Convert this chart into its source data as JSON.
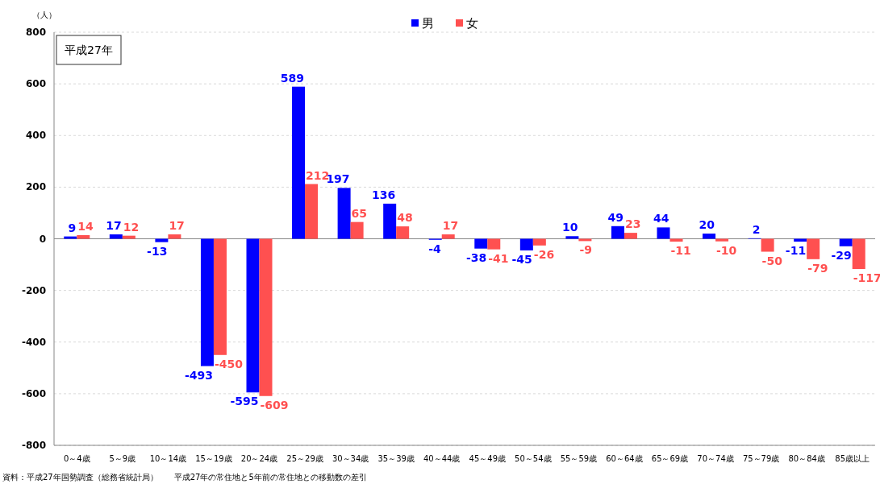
{
  "chart_data": {
    "type": "bar",
    "ylabel": "（人）",
    "subtitle": "平成27年",
    "categories": [
      "0～4歳",
      "5～9歳",
      "10～14歳",
      "15～19歳",
      "20～24歳",
      "25～29歳",
      "30～34歳",
      "35～39歳",
      "40～44歳",
      "45～49歳",
      "50～54歳",
      "55～59歳",
      "60～64歳",
      "65～69歳",
      "70～74歳",
      "75～79歳",
      "80～84歳",
      "85歳以上"
    ],
    "series": [
      {
        "name": "男",
        "color": "#0000ff",
        "values": [
          9,
          17,
          -13,
          -493,
          -595,
          589,
          197,
          136,
          -4,
          -38,
          -45,
          10,
          49,
          44,
          20,
          2,
          -11,
          -29
        ]
      },
      {
        "name": "女",
        "color": "#ff5050",
        "values": [
          14,
          12,
          17,
          -450,
          -609,
          212,
          65,
          48,
          17,
          -41,
          -26,
          -9,
          23,
          -11,
          -10,
          -50,
          -79,
          -117
        ]
      }
    ],
    "ylim": [
      -800,
      800
    ],
    "yticks": [
      -800,
      -600,
      -400,
      -200,
      0,
      200,
      400,
      600,
      800
    ],
    "grid": "y",
    "legend": "top",
    "data_labels": true,
    "annotations": [
      "資料：平成27年国勢調査（総務省統計局）　　平成27年の常住地と5年前の常住地との移動数の差引"
    ]
  }
}
